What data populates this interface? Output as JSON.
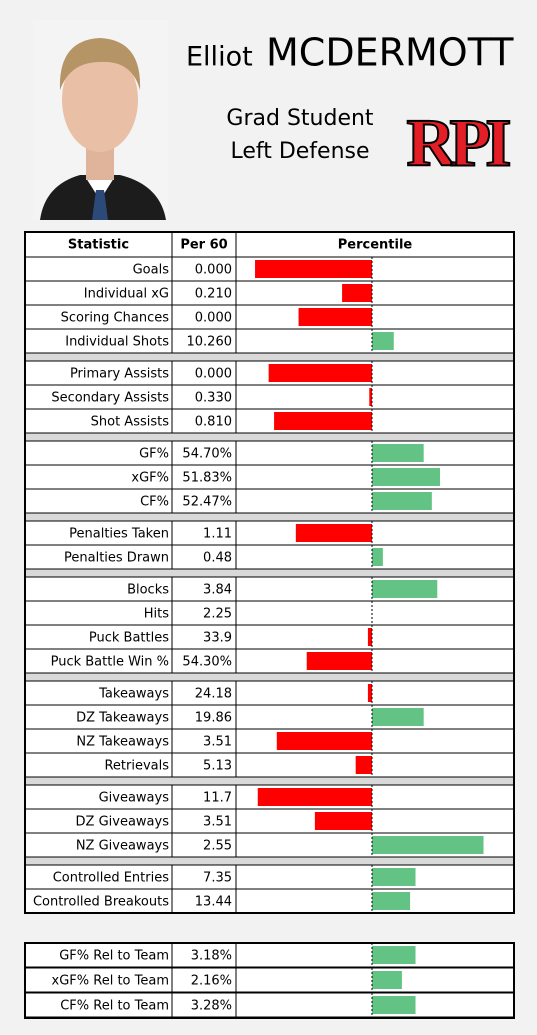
{
  "header": {
    "first_name": "Elliot",
    "last_name": "MCDERMOTT",
    "year": "Grad Student",
    "position": "Left Defense",
    "logo": "RPI"
  },
  "table": {
    "columns": [
      "Statistic",
      "Per 60",
      "Percentile"
    ],
    "percentile_xlim": [
      0,
      100
    ],
    "reference_line": 50,
    "groups": [
      [
        {
          "stat": "Goals",
          "per60": "0.000",
          "percentile": 7
        },
        {
          "stat": "Individual xG",
          "per60": "0.210",
          "percentile": 39
        },
        {
          "stat": "Scoring Chances",
          "per60": "0.000",
          "percentile": 23
        },
        {
          "stat": "Individual Shots",
          "per60": "10.260",
          "percentile": 58
        }
      ],
      [
        {
          "stat": "Primary Assists",
          "per60": "0.000",
          "percentile": 12
        },
        {
          "stat": "Secondary Assists",
          "per60": "0.330",
          "percentile": 49
        },
        {
          "stat": "Shot Assists",
          "per60": "0.810",
          "percentile": 14
        }
      ],
      [
        {
          "stat": "GF%",
          "per60": "54.70%",
          "percentile": 69
        },
        {
          "stat": "xGF%",
          "per60": "51.83%",
          "percentile": 75
        },
        {
          "stat": "CF%",
          "per60": "52.47%",
          "percentile": 72
        }
      ],
      [
        {
          "stat": "Penalties Taken",
          "per60": "1.11",
          "percentile": 22
        },
        {
          "stat": "Penalties Drawn",
          "per60": "0.48",
          "percentile": 54
        }
      ],
      [
        {
          "stat": "Blocks",
          "per60": "3.84",
          "percentile": 74
        },
        {
          "stat": "Hits",
          "per60": "2.25",
          "percentile": 50
        },
        {
          "stat": "Puck Battles",
          "per60": "33.9",
          "percentile": 48.5
        },
        {
          "stat": "Puck Battle Win %",
          "per60": "54.30%",
          "percentile": 26
        }
      ],
      [
        {
          "stat": "Takeaways",
          "per60": "24.18",
          "percentile": 48.5
        },
        {
          "stat": "DZ Takeaways",
          "per60": "19.86",
          "percentile": 69
        },
        {
          "stat": "NZ Takeaways",
          "per60": "3.51",
          "percentile": 15
        },
        {
          "stat": "Retrievals",
          "per60": "5.13",
          "percentile": 44
        }
      ],
      [
        {
          "stat": "Giveaways",
          "per60": "11.7",
          "percentile": 8
        },
        {
          "stat": "DZ Giveaways",
          "per60": "3.51",
          "percentile": 29
        },
        {
          "stat": "NZ Giveaways",
          "per60": "2.55",
          "percentile": 91
        }
      ],
      [
        {
          "stat": "Controlled Entries",
          "per60": "7.35",
          "percentile": 66
        },
        {
          "stat": "Controlled Breakouts",
          "per60": "13.44",
          "percentile": 64
        }
      ]
    ],
    "relative": [
      {
        "stat": "GF% Rel to Team",
        "per60": "3.18%",
        "percentile": 66
      },
      {
        "stat": "xGF% Rel to Team",
        "per60": "2.16%",
        "percentile": 61
      },
      {
        "stat": "CF% Rel to Team",
        "per60": "3.28%",
        "percentile": 66
      }
    ]
  }
}
